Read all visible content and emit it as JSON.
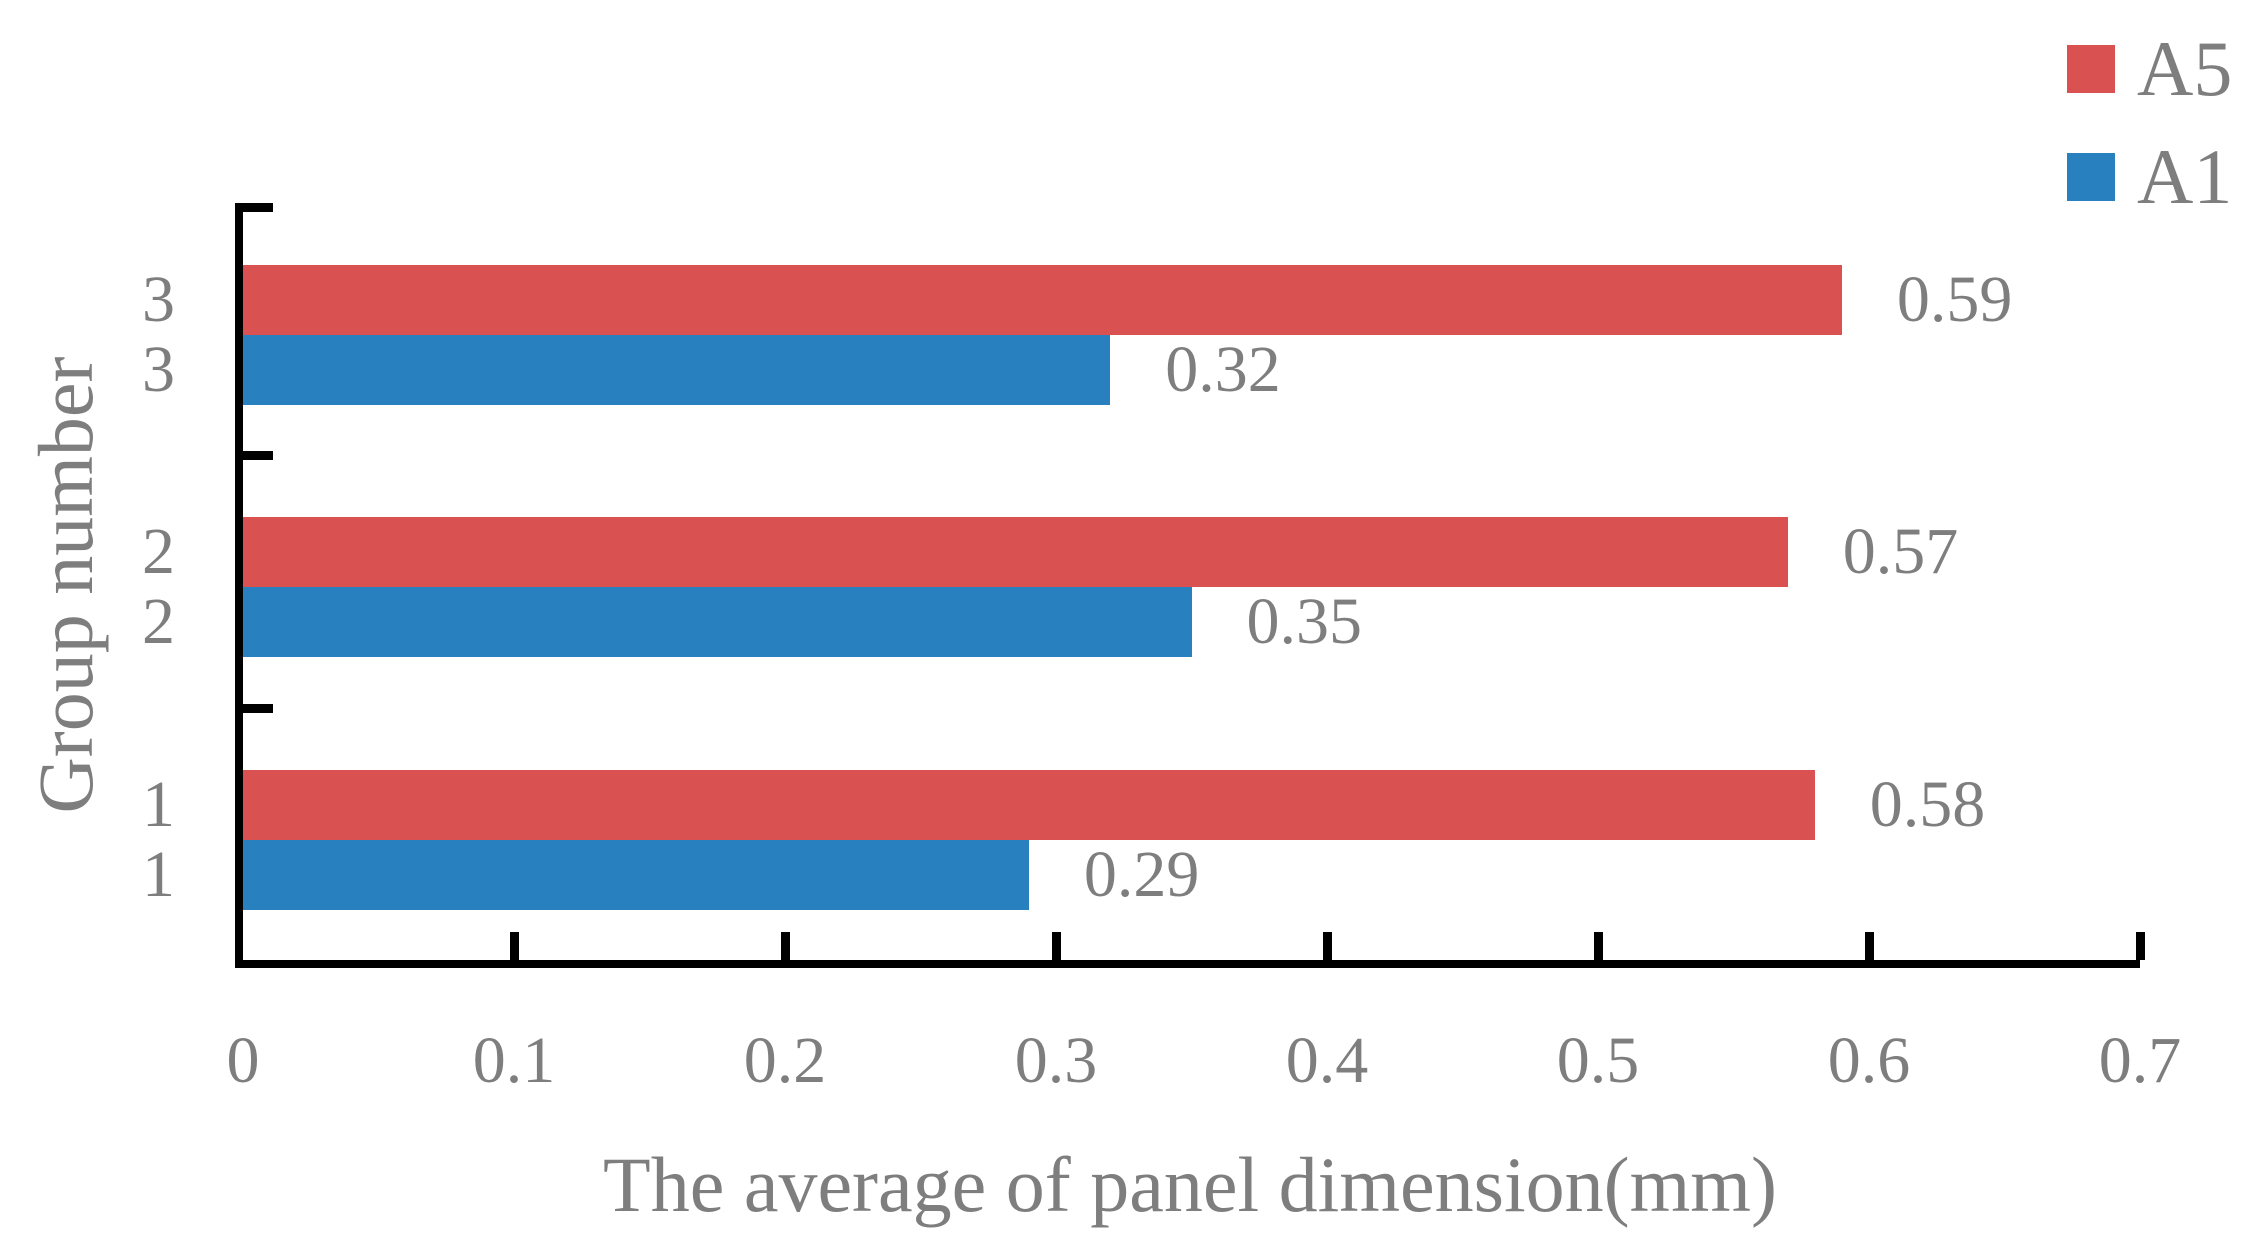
{
  "chart_data": {
    "type": "bar",
    "orientation": "horizontal",
    "xlabel": "The average of panel dimension(mm)",
    "ylabel": "Group number",
    "categories": [
      "3",
      "2",
      "1"
    ],
    "series": [
      {
        "name": "A5",
        "color": "#DA5151",
        "values": [
          0.59,
          0.57,
          0.58
        ],
        "data_labels": [
          "0.59",
          "0.57",
          "0.58"
        ]
      },
      {
        "name": "A1",
        "color": "#2880BE",
        "values": [
          0.32,
          0.35,
          0.29
        ],
        "data_labels": [
          "0.32",
          "0.35",
          "0.29"
        ]
      }
    ],
    "xlim": [
      0,
      0.7
    ],
    "x_ticks": [
      "0",
      "0.1",
      "0.2",
      "0.3",
      "0.4",
      "0.5",
      "0.6",
      "0.7"
    ],
    "grid": false,
    "legend_position": "top-right",
    "axis_color": "#000000",
    "text_color": "#7e7e7e"
  },
  "legend": {
    "items": [
      {
        "label": "A5",
        "color": "#DA5151"
      },
      {
        "label": "A1",
        "color": "#2880BE"
      }
    ]
  },
  "titles": {
    "x_axis": "The average of panel dimension(mm)",
    "y_axis": "Group number"
  }
}
